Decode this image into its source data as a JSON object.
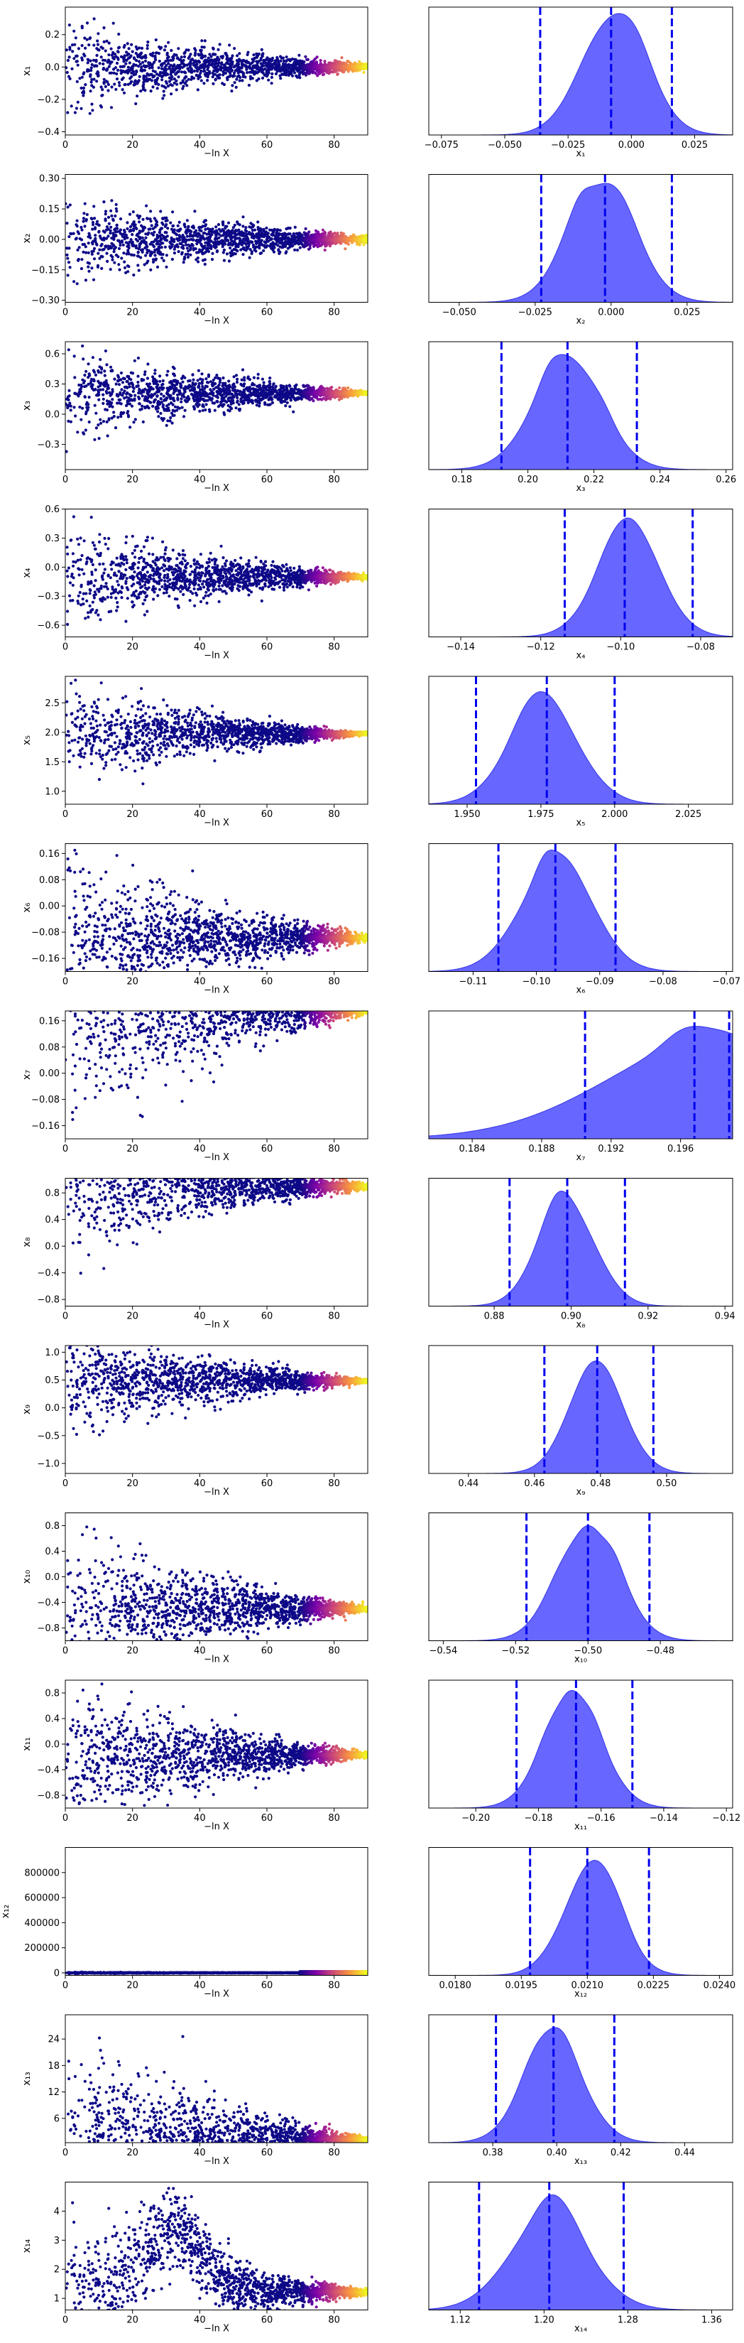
{
  "chart_data": [
    {
      "type": "scatter",
      "panel": "trace",
      "ylabel": "x₁",
      "xlabel": "−ln X",
      "xlim": [
        0,
        90
      ],
      "ylim": [
        -0.42,
        0.37
      ],
      "xticks": [
        0,
        20,
        40,
        60,
        80
      ],
      "yticks": [
        -0.4,
        -0.2,
        0.0,
        0.2
      ],
      "ytick_labels": [
        "−0.4",
        "−0.2",
        "0.0",
        "0.2"
      ],
      "converge": 0.0,
      "spread_start": 0.15,
      "spread_end": 0.01,
      "bump": 0,
      "colormap": "plasma"
    },
    {
      "type": "area",
      "panel": "marginal",
      "xlabel": "x₁",
      "xlim": [
        -0.08,
        0.04
      ],
      "xticks": [
        -0.075,
        -0.05,
        -0.025,
        0.0,
        0.025
      ],
      "xtick_labels": [
        "−0.075",
        "−0.050",
        "−0.025",
        "0.000",
        "0.025"
      ],
      "mean": -0.007,
      "sd": 0.013,
      "quantiles": [
        -0.036,
        -0.008,
        0.016
      ],
      "peak_frac": 0.95
    },
    {
      "type": "scatter",
      "panel": "trace",
      "ylabel": "x₂",
      "xlabel": "−ln X",
      "xlim": [
        0,
        90
      ],
      "ylim": [
        -0.31,
        0.32
      ],
      "xticks": [
        0,
        20,
        40,
        60,
        80
      ],
      "yticks": [
        -0.3,
        -0.15,
        0.0,
        0.15,
        0.3
      ],
      "ytick_labels": [
        "−0.30",
        "−0.15",
        "0.00",
        "0.15",
        "0.30"
      ],
      "converge": 0.0,
      "spread_start": 0.12,
      "spread_end": 0.01,
      "bump": 0,
      "colormap": "plasma"
    },
    {
      "type": "area",
      "panel": "marginal",
      "xlabel": "x₂",
      "xlim": [
        -0.06,
        0.04
      ],
      "xticks": [
        -0.05,
        -0.025,
        0.0,
        0.025
      ],
      "xtick_labels": [
        "−0.050",
        "−0.025",
        "0.000",
        "0.025"
      ],
      "mean": -0.003,
      "sd": 0.011,
      "quantiles": [
        -0.023,
        -0.002,
        0.02
      ],
      "peak_frac": 0.93
    },
    {
      "type": "scatter",
      "panel": "trace",
      "ylabel": "x₃",
      "xlabel": "−ln X",
      "xlim": [
        0,
        90
      ],
      "ylim": [
        -0.55,
        0.72
      ],
      "xticks": [
        0,
        20,
        40,
        60,
        80
      ],
      "yticks": [
        -0.3,
        0.0,
        0.3,
        0.6
      ],
      "ytick_labels": [
        "−0.3",
        "0.0",
        "0.3",
        "0.6"
      ],
      "converge": 0.21,
      "spread_start": 0.25,
      "spread_end": 0.01,
      "bump": 0,
      "colormap": "plasma"
    },
    {
      "type": "area",
      "panel": "marginal",
      "xlabel": "x₃",
      "xlim": [
        0.17,
        0.262
      ],
      "xticks": [
        0.18,
        0.2,
        0.22,
        0.24,
        0.26
      ],
      "xtick_labels": [
        "0.18",
        "0.20",
        "0.22",
        "0.24",
        "0.26"
      ],
      "mean": 0.212,
      "sd": 0.0105,
      "quantiles": [
        0.192,
        0.212,
        0.233
      ],
      "peak_frac": 0.9
    },
    {
      "type": "scatter",
      "panel": "trace",
      "ylabel": "x₄",
      "xlabel": "−ln X",
      "xlim": [
        0,
        90
      ],
      "ylim": [
        -0.72,
        0.6
      ],
      "xticks": [
        0,
        20,
        40,
        60,
        80
      ],
      "yticks": [
        -0.6,
        -0.3,
        0.0,
        0.3,
        0.6
      ],
      "ytick_labels": [
        "−0.6",
        "−0.3",
        "0.0",
        "0.3",
        "0.6"
      ],
      "converge": -0.1,
      "spread_start": 0.3,
      "spread_end": 0.01,
      "bump": 0,
      "colormap": "plasma"
    },
    {
      "type": "area",
      "panel": "marginal",
      "xlabel": "x₄",
      "xlim": [
        -0.148,
        -0.072
      ],
      "xticks": [
        -0.14,
        -0.12,
        -0.1,
        -0.08
      ],
      "xtick_labels": [
        "−0.14",
        "−0.12",
        "−0.10",
        "−0.08"
      ],
      "mean": -0.098,
      "sd": 0.008,
      "quantiles": [
        -0.114,
        -0.099,
        -0.082
      ],
      "peak_frac": 0.93
    },
    {
      "type": "scatter",
      "panel": "trace",
      "ylabel": "x₅",
      "xlabel": "−ln X",
      "xlim": [
        0,
        90
      ],
      "ylim": [
        0.78,
        2.95
      ],
      "xticks": [
        0,
        20,
        40,
        60,
        80
      ],
      "yticks": [
        1.0,
        1.5,
        2.0,
        2.5
      ],
      "ytick_labels": [
        "1.0",
        "1.5",
        "2.0",
        "2.5"
      ],
      "converge": 1.98,
      "spread_start": 0.45,
      "spread_end": 0.01,
      "bump": 0,
      "colormap": "plasma"
    },
    {
      "type": "area",
      "panel": "marginal",
      "xlabel": "x₅",
      "xlim": [
        1.937,
        2.04
      ],
      "xticks": [
        1.95,
        1.975,
        2.0,
        2.025
      ],
      "xtick_labels": [
        "1.950",
        "1.975",
        "2.000",
        "2.025"
      ],
      "mean": 1.976,
      "sd": 0.012,
      "quantiles": [
        1.953,
        1.977,
        2.0
      ],
      "peak_frac": 0.88
    },
    {
      "type": "scatter",
      "panel": "trace",
      "ylabel": "x₆",
      "xlabel": "−ln X",
      "xlim": [
        0,
        90
      ],
      "ylim": [
        -0.2,
        0.19
      ],
      "xticks": [
        0,
        20,
        40,
        60,
        80
      ],
      "yticks": [
        -0.16,
        -0.08,
        0.0,
        0.08,
        0.16
      ],
      "ytick_labels": [
        "−0.16",
        "−0.08",
        "0.00",
        "0.08",
        "0.16"
      ],
      "converge": -0.097,
      "spread_start": 0.14,
      "spread_end": 0.005,
      "bump": 0,
      "colormap": "plasma"
    },
    {
      "type": "area",
      "panel": "marginal",
      "xlabel": "x₆",
      "xlim": [
        -0.117,
        -0.069
      ],
      "xticks": [
        -0.11,
        -0.1,
        -0.09,
        -0.08,
        -0.07
      ],
      "xtick_labels": [
        "−0.11",
        "−0.10",
        "−0.09",
        "−0.08",
        "−0.07"
      ],
      "mean": -0.097,
      "sd": 0.0057,
      "quantiles": [
        -0.106,
        -0.097,
        -0.0875
      ],
      "peak_frac": 0.95
    },
    {
      "type": "scatter",
      "panel": "trace",
      "ylabel": "x₇",
      "xlabel": "−ln X",
      "xlim": [
        0,
        90
      ],
      "ylim": [
        -0.2,
        0.19
      ],
      "xticks": [
        0,
        20,
        40,
        60,
        80
      ],
      "yticks": [
        -0.16,
        -0.08,
        0.0,
        0.08,
        0.16
      ],
      "ytick_labels": [
        "−0.16",
        "−0.08",
        "0.00",
        "0.08",
        "0.16"
      ],
      "converge": 0.19,
      "spread_start": 0.2,
      "spread_end": 0.004,
      "bump": 0,
      "colormap": "plasma"
    },
    {
      "type": "area",
      "panel": "marginal",
      "xlabel": "x₇",
      "xlim": [
        0.1815,
        0.199
      ],
      "xticks": [
        0.184,
        0.188,
        0.192,
        0.196
      ],
      "xtick_labels": [
        "0.184",
        "0.188",
        "0.192",
        "0.196"
      ],
      "mean": 0.1982,
      "sd": 0.0033,
      "quantiles": [
        0.1905,
        0.1968,
        0.1988
      ],
      "peak_frac": 0.88,
      "skew": "left"
    },
    {
      "type": "scatter",
      "panel": "trace",
      "ylabel": "x₈",
      "xlabel": "−ln X",
      "xlim": [
        0,
        90
      ],
      "ylim": [
        -0.9,
        1.02
      ],
      "xticks": [
        0,
        20,
        40,
        60,
        80
      ],
      "yticks": [
        -0.8,
        -0.4,
        0.0,
        0.4,
        0.8
      ],
      "ytick_labels": [
        "−0.8",
        "−0.4",
        "0.0",
        "0.4",
        "0.8"
      ],
      "converge": 0.9,
      "spread_start": 0.6,
      "spread_end": 0.02,
      "bump": 0,
      "colormap": "plasma"
    },
    {
      "type": "area",
      "panel": "marginal",
      "xlabel": "x₈",
      "xlim": [
        0.863,
        0.942
      ],
      "xticks": [
        0.88,
        0.9,
        0.92,
        0.94
      ],
      "xtick_labels": [
        "0.88",
        "0.90",
        "0.92",
        "0.94"
      ],
      "mean": 0.899,
      "sd": 0.0075,
      "quantiles": [
        0.884,
        0.899,
        0.914
      ],
      "peak_frac": 0.9
    },
    {
      "type": "scatter",
      "panel": "trace",
      "ylabel": "x₉",
      "xlabel": "−ln X",
      "xlim": [
        0,
        90
      ],
      "ylim": [
        -1.18,
        1.12
      ],
      "xticks": [
        0,
        20,
        40,
        60,
        80
      ],
      "yticks": [
        -1.0,
        -0.5,
        0.0,
        0.5,
        1.0
      ],
      "ytick_labels": [
        "−1.0",
        "−0.5",
        "0.0",
        "0.5",
        "1.0"
      ],
      "converge": 0.48,
      "spread_start": 0.55,
      "spread_end": 0.02,
      "bump": 0,
      "colormap": "plasma"
    },
    {
      "type": "area",
      "panel": "marginal",
      "xlabel": "x₉",
      "xlim": [
        0.428,
        0.52
      ],
      "xticks": [
        0.44,
        0.46,
        0.48,
        0.5
      ],
      "xtick_labels": [
        "0.44",
        "0.46",
        "0.48",
        "0.50"
      ],
      "mean": 0.479,
      "sd": 0.0085,
      "quantiles": [
        0.463,
        0.479,
        0.496
      ],
      "peak_frac": 0.88
    },
    {
      "type": "scatter",
      "panel": "trace",
      "ylabel": "x₁₀",
      "xlabel": "−ln X",
      "xlim": [
        0,
        90
      ],
      "ylim": [
        -1.0,
        1.0
      ],
      "xticks": [
        0,
        20,
        40,
        60,
        80
      ],
      "yticks": [
        -0.8,
        -0.4,
        0.0,
        0.4,
        0.8
      ],
      "ytick_labels": [
        "−0.8",
        "−0.4",
        "0.0",
        "0.4",
        "0.8"
      ],
      "converge": -0.5,
      "spread_start": 0.7,
      "spread_end": 0.02,
      "bump": 0,
      "colormap": "plasma"
    },
    {
      "type": "area",
      "panel": "marginal",
      "xlabel": "x₁₀",
      "xlim": [
        -0.544,
        -0.46
      ],
      "xticks": [
        -0.54,
        -0.52,
        -0.5,
        -0.48
      ],
      "xtick_labels": [
        "−0.54",
        "−0.52",
        "−0.50",
        "−0.48"
      ],
      "mean": -0.5,
      "sd": 0.0088,
      "quantiles": [
        -0.517,
        -0.5,
        -0.483
      ],
      "peak_frac": 0.9
    },
    {
      "type": "scatter",
      "panel": "trace",
      "ylabel": "x₁₁",
      "xlabel": "−ln X",
      "xlim": [
        0,
        90
      ],
      "ylim": [
        -1.0,
        1.0
      ],
      "xticks": [
        0,
        20,
        40,
        60,
        80
      ],
      "yticks": [
        -0.8,
        -0.4,
        0.0,
        0.4,
        0.8
      ],
      "ytick_labels": [
        "−0.8",
        "−0.4",
        "0.0",
        "0.4",
        "0.8"
      ],
      "converge": -0.17,
      "spread_start": 0.65,
      "spread_end": 0.02,
      "bump": 0,
      "colormap": "plasma"
    },
    {
      "type": "area",
      "panel": "marginal",
      "xlabel": "x₁₁",
      "xlim": [
        -0.215,
        -0.118
      ],
      "xticks": [
        -0.2,
        -0.18,
        -0.16,
        -0.14,
        -0.12
      ],
      "xtick_labels": [
        "−0.20",
        "−0.18",
        "−0.16",
        "−0.14",
        "−0.12"
      ],
      "mean": -0.169,
      "sd": 0.0095,
      "quantiles": [
        -0.187,
        -0.168,
        -0.15
      ],
      "peak_frac": 0.92
    },
    {
      "type": "scatter",
      "panel": "trace",
      "ylabel": "x₁₂",
      "xlabel": "−ln X",
      "xlim": [
        0,
        90
      ],
      "ylim": [
        -20000,
        1000000
      ],
      "xticks": [
        0,
        20,
        40,
        60,
        80
      ],
      "yticks": [
        0,
        200000,
        400000,
        600000,
        800000
      ],
      "ytick_labels": [
        "0",
        "200000",
        "400000",
        "600000",
        "800000"
      ],
      "converge": 0.0,
      "spread_start": 3000,
      "spread_end": 100,
      "bump": 0,
      "colormap": "plasma"
    },
    {
      "type": "area",
      "panel": "marginal",
      "xlabel": "x₁₂",
      "xlim": [
        0.0174,
        0.0243
      ],
      "xticks": [
        0.018,
        0.0195,
        0.021,
        0.0225,
        0.024
      ],
      "xtick_labels": [
        "0.0180",
        "0.0195",
        "0.0210",
        "0.0225",
        "0.0240"
      ],
      "mean": 0.0211,
      "sd": 0.00065,
      "quantiles": [
        0.0197,
        0.021,
        0.0224
      ],
      "peak_frac": 0.9
    },
    {
      "type": "scatter",
      "panel": "trace",
      "ylabel": "x₁₃",
      "xlabel": "−ln X",
      "xlim": [
        0,
        90
      ],
      "ylim": [
        0.5,
        29.5
      ],
      "xticks": [
        0,
        20,
        40,
        60,
        80
      ],
      "yticks": [
        6,
        12,
        18,
        24
      ],
      "ytick_labels": [
        "6",
        "12",
        "18",
        "24"
      ],
      "converge": 1.3,
      "spread_start": 12,
      "spread_end": 0.3,
      "bump": 0,
      "colormap": "plasma"
    },
    {
      "type": "area",
      "panel": "marginal",
      "xlabel": "x₁₃",
      "xlim": [
        0.36,
        0.455
      ],
      "xticks": [
        0.38,
        0.4,
        0.42,
        0.44
      ],
      "xtick_labels": [
        "0.38",
        "0.40",
        "0.42",
        "0.44"
      ],
      "mean": 0.399,
      "sd": 0.0095,
      "quantiles": [
        0.381,
        0.399,
        0.418
      ],
      "peak_frac": 0.9
    },
    {
      "type": "scatter",
      "panel": "trace",
      "ylabel": "x₁₄",
      "xlabel": "−ln X",
      "xlim": [
        0,
        90
      ],
      "ylim": [
        0.6,
        5.0
      ],
      "xticks": [
        0,
        20,
        40,
        60,
        80
      ],
      "yticks": [
        1,
        2,
        3,
        4
      ],
      "ytick_labels": [
        "1",
        "2",
        "3",
        "4"
      ],
      "converge": 1.22,
      "spread_start": 1.5,
      "spread_end": 0.05,
      "bump": 2.2,
      "colormap": "plasma"
    },
    {
      "type": "area",
      "panel": "marginal",
      "xlabel": "x₁₄",
      "xlim": [
        1.09,
        1.38
      ],
      "xticks": [
        1.12,
        1.2,
        1.28,
        1.36
      ],
      "xtick_labels": [
        "1.12",
        "1.20",
        "1.28",
        "1.36"
      ],
      "mean": 1.205,
      "sd": 0.038,
      "quantiles": [
        1.138,
        1.205,
        1.276
      ],
      "peak_frac": 0.9
    }
  ]
}
